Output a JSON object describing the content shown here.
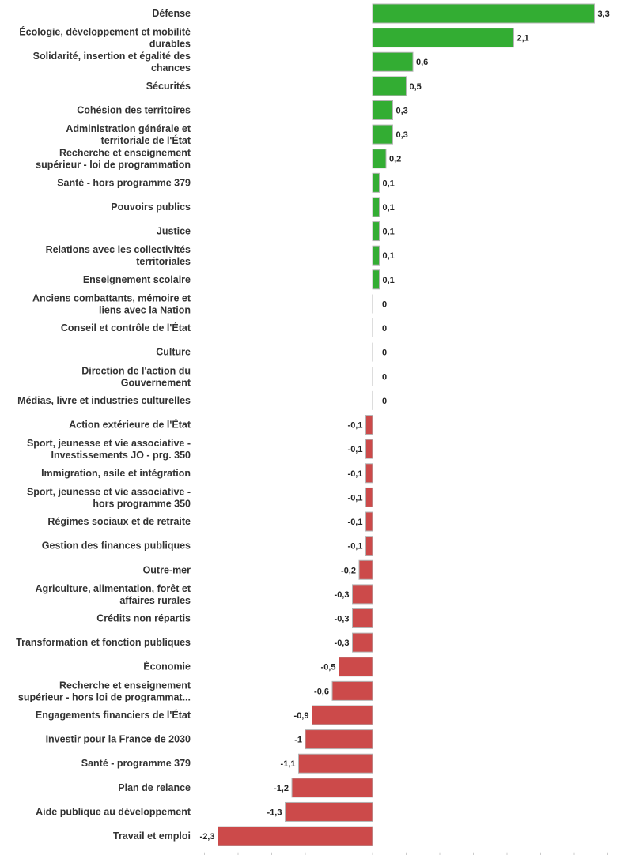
{
  "chart_data": {
    "type": "bar",
    "orientation": "horizontal",
    "categories": [
      [
        "Défense"
      ],
      [
        "Écologie, développement et mobilité",
        "durables"
      ],
      [
        "Solidarité, insertion et égalité des",
        "chances"
      ],
      [
        "Sécurités"
      ],
      [
        "Cohésion des territoires"
      ],
      [
        "Administration générale et",
        "territoriale de l'État"
      ],
      [
        "Recherche et enseignement",
        "supérieur - loi de programmation"
      ],
      [
        "Santé - hors programme 379"
      ],
      [
        "Pouvoirs publics"
      ],
      [
        "Justice"
      ],
      [
        "Relations avec les collectivités",
        "territoriales"
      ],
      [
        "Enseignement scolaire"
      ],
      [
        "Anciens combattants, mémoire et",
        "liens avec la Nation"
      ],
      [
        "Conseil et contrôle de l'État"
      ],
      [
        "Culture"
      ],
      [
        "Direction de l'action du",
        "Gouvernement"
      ],
      [
        "Médias, livre et industries culturelles"
      ],
      [
        "Action extérieure de l'État"
      ],
      [
        "Sport, jeunesse et vie associative -",
        "Investissements JO - prg. 350"
      ],
      [
        "Immigration, asile et intégration"
      ],
      [
        "Sport, jeunesse et vie associative -",
        "hors programme 350"
      ],
      [
        "Régimes sociaux et de retraite"
      ],
      [
        "Gestion des finances publiques"
      ],
      [
        "Outre-mer"
      ],
      [
        "Agriculture, alimentation, forêt et",
        "affaires rurales"
      ],
      [
        "Crédits non répartis"
      ],
      [
        "Transformation et fonction publiques"
      ],
      [
        "Économie"
      ],
      [
        "Recherche et enseignement",
        "supérieur - hors loi de programmat..."
      ],
      [
        "Engagements financiers de l'État"
      ],
      [
        "Investir pour la France de 2030"
      ],
      [
        "Santé - programme 379"
      ],
      [
        "Plan de relance"
      ],
      [
        "Aide publique au développement"
      ],
      [
        "Travail et emploi"
      ]
    ],
    "values": [
      3.3,
      2.1,
      0.6,
      0.5,
      0.3,
      0.3,
      0.2,
      0.1,
      0.1,
      0.1,
      0.1,
      0.1,
      0,
      0,
      0,
      0,
      0,
      -0.1,
      -0.1,
      -0.1,
      -0.1,
      -0.1,
      -0.1,
      -0.2,
      -0.3,
      -0.3,
      -0.3,
      -0.5,
      -0.6,
      -0.9,
      -1,
      -1.1,
      -1.2,
      -1.3,
      -2.3
    ],
    "value_labels": [
      "3,3",
      "2,1",
      "0,6",
      "0,5",
      "0,3",
      "0,3",
      "0,2",
      "0,1",
      "0,1",
      "0,1",
      "0,1",
      "0,1",
      "0",
      "0",
      "0",
      "0",
      "0",
      "-0,1",
      "-0,1",
      "-0,1",
      "-0,1",
      "-0,1",
      "-0,1",
      "-0,2",
      "-0,3",
      "-0,3",
      "-0,3",
      "-0,5",
      "-0,6",
      "-0,9",
      "-1",
      "-1,1",
      "-1,2",
      "-1,3",
      "-2,3"
    ],
    "xlim": [
      -2.5,
      3.5
    ],
    "colors": {
      "positive": "#33ad33",
      "negative": "#cc4a4a",
      "bar_stroke": "#b5b5b5",
      "zero_line": "#bbbbbb",
      "tick": "#cccccc"
    }
  }
}
